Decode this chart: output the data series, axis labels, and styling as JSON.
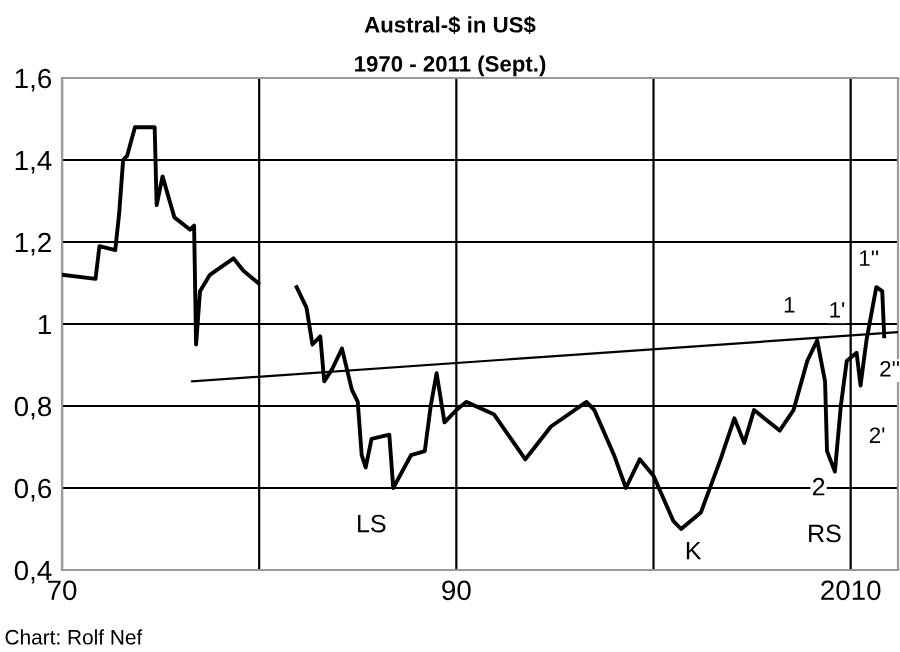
{
  "chart_data": {
    "type": "line",
    "title": "Austral-$ in US$",
    "subtitle": "1970 - 2011 (Sept.)",
    "series": [
      {
        "color": "#000000",
        "x": [
          1970,
          1971.7,
          1971.9,
          1972.7,
          1972.9,
          1973.1,
          1973.3,
          1973.7,
          1974.7,
          1974.8,
          1975.1,
          1975.7,
          1976.5,
          1976.7,
          1976.8,
          1977.0,
          1977.5,
          1978.7,
          1979.2,
          1979.95,
          1981,
          1981.9,
          1982.4,
          1982.7,
          1983.1,
          1983.3,
          1983.7,
          1984.2,
          1984.7,
          1985.0,
          1985.2,
          1985.4,
          1985.7,
          1986.6,
          1986.8,
          1987.7,
          1988.4,
          1988.7,
          1989.0,
          1989.4,
          1990.0,
          1990.5,
          1991.9,
          1993.5,
          1994.8,
          1996.6,
          1997.0,
          1998.0,
          1998.6,
          1999.3,
          2000.0,
          2001.0,
          2001.4,
          2002.4,
          2003.4,
          2004.1,
          2004.6,
          2005.1,
          2006.4,
          2007.1,
          2007.8,
          2008.3,
          2008.7,
          2008.8,
          2009.2,
          2009.5,
          2009.8,
          2010.3,
          2010.5,
          2010.8,
          2011.3,
          2011.6,
          2011.7
        ],
        "values": [
          1.12,
          1.11,
          1.19,
          1.18,
          1.27,
          1.4,
          1.41,
          1.48,
          1.48,
          1.29,
          1.36,
          1.26,
          1.23,
          1.24,
          0.95,
          1.08,
          1.12,
          1.16,
          1.13,
          1.1,
          null,
          1.09,
          1.04,
          0.95,
          0.97,
          0.86,
          0.89,
          0.94,
          0.84,
          0.81,
          0.68,
          0.65,
          0.72,
          0.73,
          0.6,
          0.68,
          0.69,
          0.8,
          0.88,
          0.76,
          0.79,
          0.81,
          0.78,
          0.67,
          0.75,
          0.81,
          0.79,
          0.68,
          0.6,
          0.67,
          0.63,
          0.52,
          0.5,
          0.54,
          0.67,
          0.77,
          0.71,
          0.79,
          0.74,
          0.79,
          0.91,
          0.96,
          0.86,
          0.69,
          0.64,
          0.8,
          0.91,
          0.93,
          0.85,
          0.96,
          1.09,
          1.08,
          0.97
        ]
      },
      {
        "color": "#000000",
        "x": [
          1976.6,
          2012.4
        ],
        "values": [
          0.86,
          0.98
        ]
      }
    ],
    "xlim": [
      1970,
      2012.4
    ],
    "xticks": [
      {
        "value": 1970,
        "label": "70"
      },
      {
        "value": 1980,
        "label": null
      },
      {
        "value": 1990,
        "label": "90"
      },
      {
        "value": 2000,
        "label": null
      },
      2010
    ],
    "ylim": [
      0.4,
      1.6
    ],
    "yticks": [
      {
        "value": 0.4,
        "label": "0,4"
      },
      {
        "value": 0.6,
        "label": "0,6"
      },
      {
        "value": 0.8,
        "label": "0,8"
      },
      1,
      {
        "value": 1.2,
        "label": "1,2"
      },
      {
        "value": 1.4,
        "label": "1,4"
      },
      {
        "value": 1.6,
        "label": "1,6"
      }
    ],
    "grid": true,
    "legend": false,
    "annotations": [
      "LS",
      "K",
      "RS",
      "2",
      "1",
      "1'",
      "1''",
      "2''",
      "2'",
      "Chart: Rolf Nef"
    ]
  }
}
